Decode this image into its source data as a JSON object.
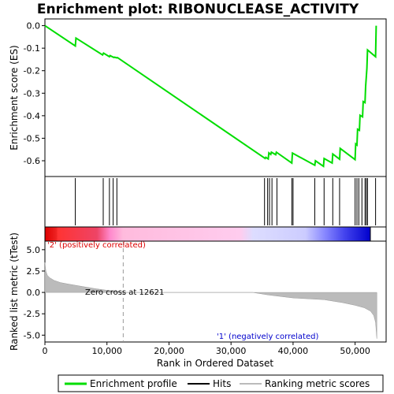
{
  "chart_data": {
    "type": "line",
    "title": "Enrichment plot: RIBONUCLEASE_ACTIVITY",
    "xlabel": "Rank in Ordered Dataset",
    "xlim": [
      0,
      55000
    ],
    "x_ticks": [
      0,
      10000,
      20000,
      30000,
      40000,
      50000
    ],
    "x_tick_labels": [
      "0",
      "10,000",
      "20,000",
      "30,000",
      "40,000",
      "50,000"
    ],
    "top_panel": {
      "ylabel": "Enrichment score (ES)",
      "ylim": [
        -0.67,
        0.03
      ],
      "y_ticks": [
        0.0,
        -0.1,
        -0.2,
        -0.3,
        -0.4,
        -0.5,
        -0.6
      ],
      "y_tick_labels": [
        "0.0",
        "-0.1",
        "-0.2",
        "-0.3",
        "-0.4",
        "-0.5",
        "-0.6"
      ],
      "series": [
        {
          "name": "Enrichment profile",
          "color": "#00dd00",
          "x": [
            0,
            4900,
            5000,
            9300,
            9450,
            10400,
            10500,
            11100,
            11200,
            11600,
            11700,
            35500,
            35600,
            36000,
            36100,
            36400,
            36500,
            37200,
            37300,
            39800,
            39900,
            43500,
            43600,
            44900,
            45000,
            46300,
            46400,
            47500,
            47600,
            50000,
            50100,
            50300,
            50400,
            50700,
            50800,
            51200,
            51300,
            51600,
            51700,
            51900,
            52000,
            53300,
            53400
          ],
          "y": [
            0.0,
            -0.09,
            -0.055,
            -0.13,
            -0.122,
            -0.138,
            -0.133,
            -0.141,
            -0.14,
            -0.143,
            -0.142,
            -0.59,
            -0.585,
            -0.592,
            -0.565,
            -0.572,
            -0.562,
            -0.573,
            -0.562,
            -0.61,
            -0.566,
            -0.62,
            -0.6,
            -0.625,
            -0.59,
            -0.61,
            -0.57,
            -0.593,
            -0.545,
            -0.595,
            -0.525,
            -0.53,
            -0.46,
            -0.465,
            -0.398,
            -0.405,
            -0.337,
            -0.342,
            -0.27,
            -0.19,
            -0.108,
            -0.138,
            0.0
          ]
        }
      ]
    },
    "hits_panel": {
      "hits": [
        4900,
        9400,
        10400,
        11000,
        11600,
        35400,
        35900,
        36200,
        36600,
        37400,
        39800,
        40000,
        43500,
        45000,
        46400,
        47500,
        50000,
        50300,
        50600,
        51100,
        51600,
        51800,
        52000,
        53300
      ]
    },
    "ranking_bar": {
      "label_positive": "'2' (positively correlated)",
      "label_negative": "'1' (negatively correlated)",
      "positive_color": "#dd0000",
      "negative_color": "#0000dd"
    },
    "bottom_panel": {
      "ylabel": "Ranked list metric (tTest)",
      "ylim": [
        -5.8,
        6.0
      ],
      "y_ticks": [
        5.0,
        2.5,
        0.0,
        -2.5,
        -5.0
      ],
      "y_tick_labels": [
        "5.0",
        "2.5",
        "0.0",
        "-2.5",
        "-5.0"
      ],
      "zero_cross_label": "Zero cross at 12621",
      "zero_cross_x": 12621,
      "metric_x": [
        0,
        150,
        400,
        800,
        1500,
        2500,
        4000,
        6000,
        8000,
        10000,
        12621,
        20000,
        33500,
        36000,
        40000,
        45000,
        48000,
        50000,
        51500,
        52500,
        53000,
        53300,
        53500
      ],
      "metric_y": [
        3.5,
        2.5,
        2.0,
        1.7,
        1.4,
        1.15,
        0.95,
        0.7,
        0.45,
        0.25,
        0.0,
        0.0,
        0.0,
        -0.3,
        -0.65,
        -0.85,
        -1.2,
        -1.5,
        -1.8,
        -2.2,
        -2.7,
        -3.5,
        -5.4
      ]
    },
    "legend": {
      "items": [
        {
          "label": "Enrichment profile",
          "color": "#00dd00"
        },
        {
          "label": "Hits",
          "color": "#000000"
        },
        {
          "label": "Ranking metric scores",
          "color": "#bbbbbb"
        }
      ]
    }
  }
}
